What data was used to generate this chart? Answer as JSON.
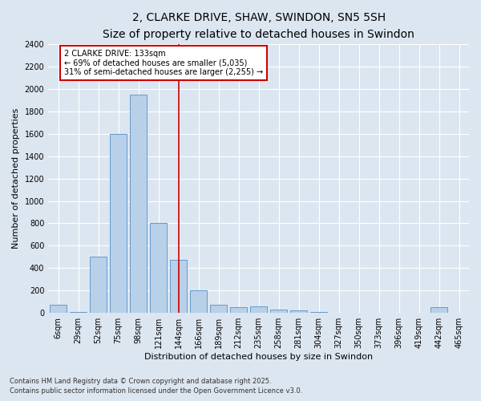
{
  "title": "2, CLARKE DRIVE, SHAW, SWINDON, SN5 5SH",
  "subtitle": "Size of property relative to detached houses in Swindon",
  "xlabel": "Distribution of detached houses by size in Swindon",
  "ylabel": "Number of detached properties",
  "footnote1": "Contains HM Land Registry data © Crown copyright and database right 2025.",
  "footnote2": "Contains public sector information licensed under the Open Government Licence v3.0.",
  "bar_labels": [
    "6sqm",
    "29sqm",
    "52sqm",
    "75sqm",
    "98sqm",
    "121sqm",
    "144sqm",
    "166sqm",
    "189sqm",
    "212sqm",
    "235sqm",
    "258sqm",
    "281sqm",
    "304sqm",
    "327sqm",
    "350sqm",
    "373sqm",
    "396sqm",
    "419sqm",
    "442sqm",
    "465sqm"
  ],
  "bar_values": [
    75,
    10,
    500,
    1600,
    1950,
    800,
    475,
    200,
    75,
    50,
    60,
    30,
    25,
    10,
    5,
    5,
    5,
    0,
    0,
    50,
    5
  ],
  "bar_color": "#b8d0e8",
  "bar_edge_color": "#6699cc",
  "vline_x": 6.0,
  "vline_color": "#cc0000",
  "annotation_text": "2 CLARKE DRIVE: 133sqm\n← 69% of detached houses are smaller (5,035)\n31% of semi-detached houses are larger (2,255) →",
  "annotation_box_color": "#ffffff",
  "annotation_border_color": "#cc0000",
  "ylim": [
    0,
    2400
  ],
  "yticks": [
    0,
    200,
    400,
    600,
    800,
    1000,
    1200,
    1400,
    1600,
    1800,
    2000,
    2200,
    2400
  ],
  "bg_color": "#dce6f1",
  "plot_bg_color": "#dce6f1",
  "title_fontsize": 10,
  "subtitle_fontsize": 9,
  "axis_label_fontsize": 8,
  "tick_fontsize": 7,
  "footnote_fontsize": 6
}
